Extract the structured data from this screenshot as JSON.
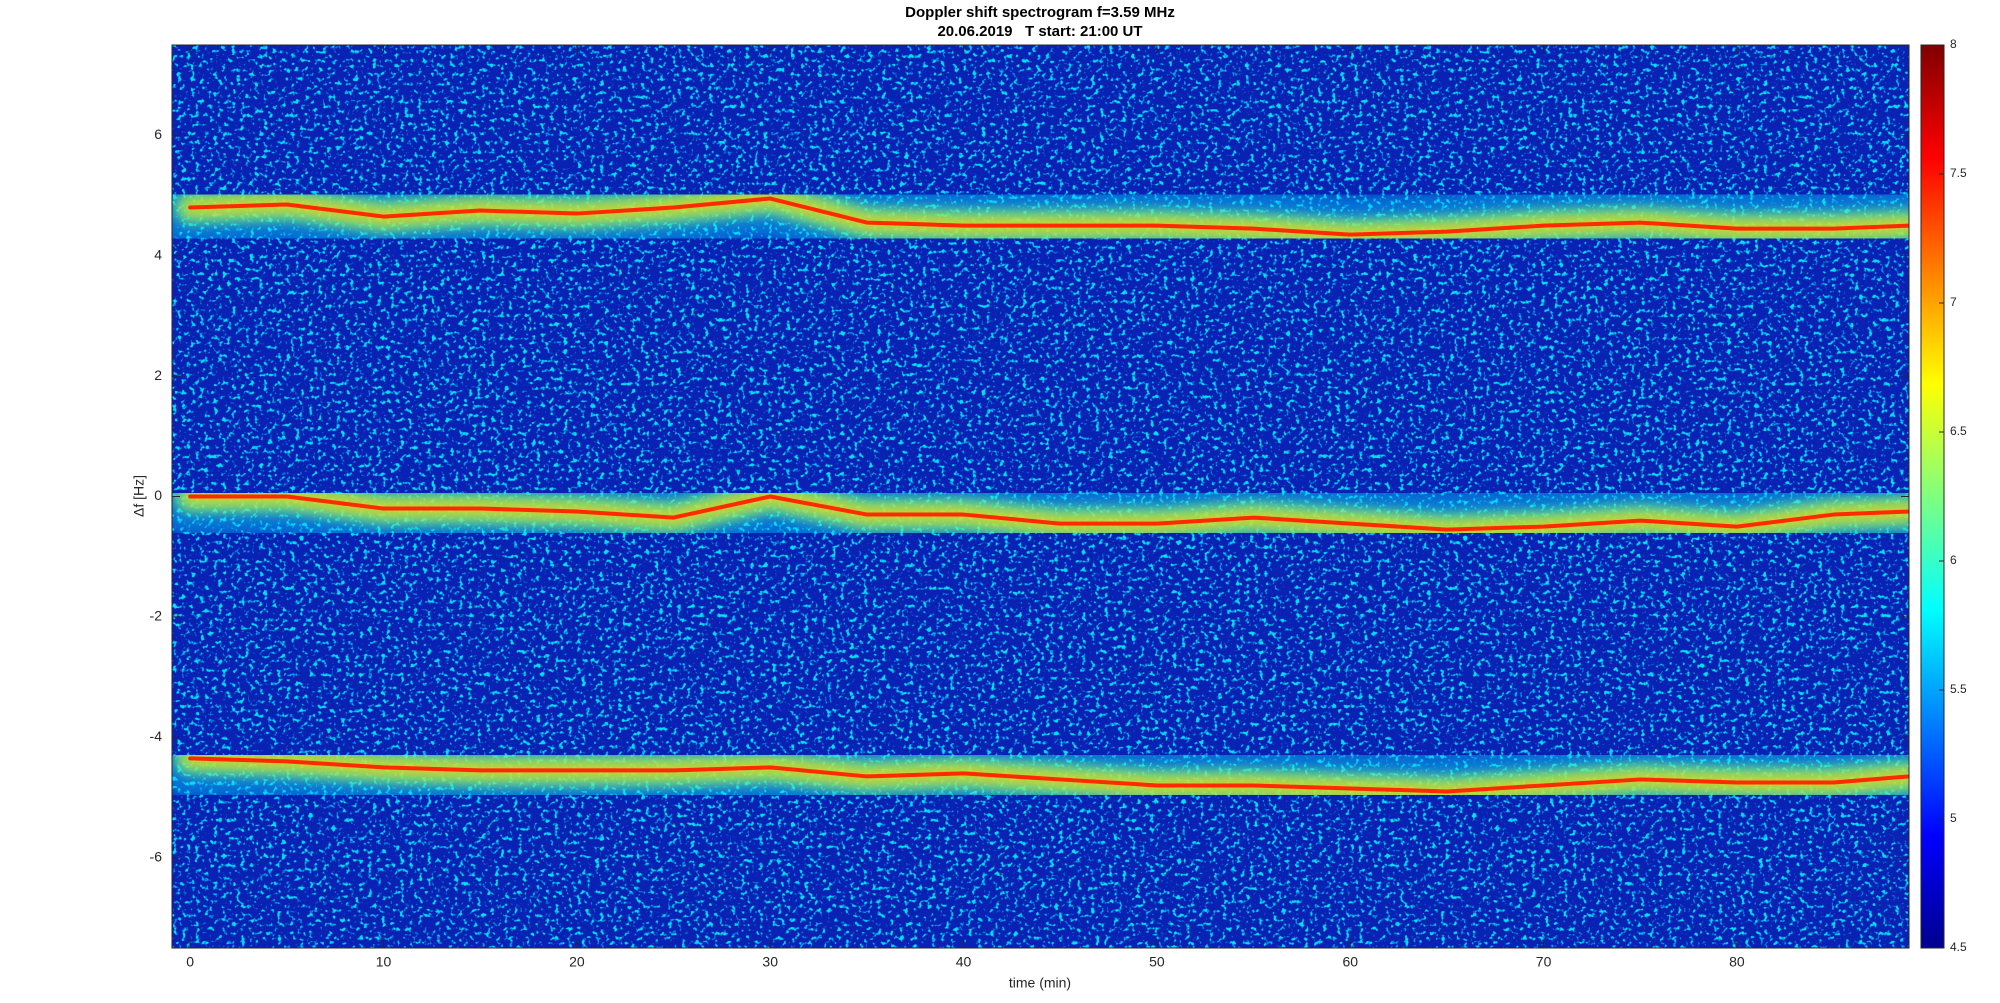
{
  "chart_data": {
    "type": "spectrogram",
    "title": "Doppler shift spectrogram f=3.59 MHz",
    "subtitle": "20.06.2019   T start: 21:00 UT",
    "x_label": "time (min)",
    "y_label": "Δf [Hz]",
    "xlim": [
      -0.94,
      88.9
    ],
    "ylim": [
      -7.5,
      7.5
    ],
    "xticks": [
      0,
      10,
      20,
      30,
      40,
      50,
      60,
      70,
      80
    ],
    "yticks": [
      -6,
      -4,
      -2,
      0,
      2,
      4,
      6
    ],
    "colormap": "jet",
    "clim": [
      4.5,
      8
    ],
    "cticks": [
      4.5,
      5,
      5.5,
      6,
      6.5,
      7,
      7.5,
      8
    ],
    "x": [
      0,
      5,
      10,
      15,
      20,
      25,
      30,
      35,
      40,
      45,
      50,
      55,
      60,
      65,
      70,
      75,
      80,
      85,
      88.9
    ],
    "series": [
      {
        "color": "#ff2a00",
        "values": [
          4.8,
          4.85,
          4.65,
          4.75,
          4.7,
          4.8,
          4.95,
          4.55,
          4.5,
          4.5,
          4.5,
          4.45,
          4.35,
          4.4,
          4.5,
          4.55,
          4.45,
          4.45,
          4.5
        ]
      },
      {
        "color": "#ff2a00",
        "values": [
          0,
          0,
          -0.2,
          -0.2,
          -0.25,
          -0.35,
          0,
          -0.3,
          -0.3,
          -0.45,
          -0.45,
          -0.35,
          -0.45,
          -0.55,
          -0.5,
          -0.4,
          -0.5,
          -0.3,
          -0.25
        ]
      },
      {
        "color": "#ff2a00",
        "values": [
          -4.35,
          -4.4,
          -4.5,
          -4.55,
          -4.55,
          -4.55,
          -4.5,
          -4.65,
          -4.6,
          -4.7,
          -4.8,
          -4.8,
          -4.85,
          -4.9,
          -4.8,
          -4.7,
          -4.75,
          -4.75,
          -4.65
        ]
      }
    ]
  }
}
